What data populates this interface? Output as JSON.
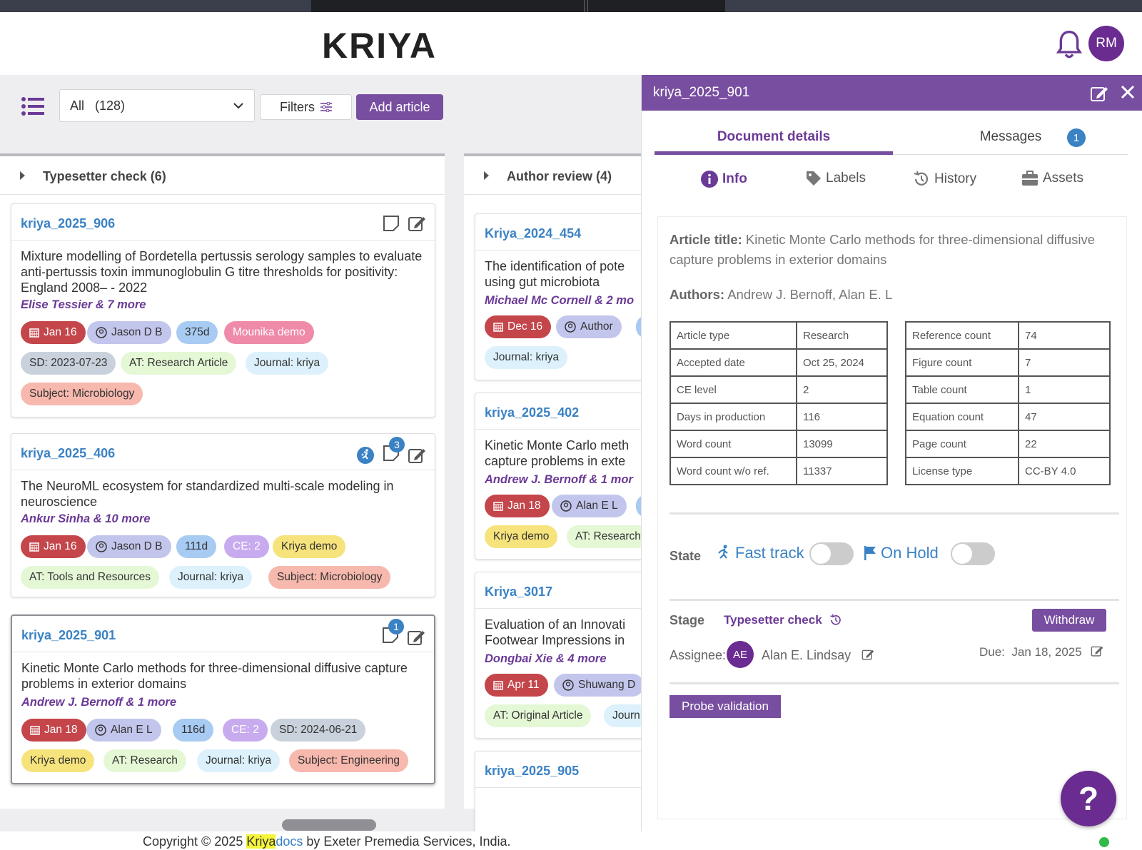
{
  "app": {
    "logo": "KRIYA",
    "user_initials": "RM"
  },
  "toolbar": {
    "view_filter": "All",
    "view_count": "(128)",
    "filters_label": "Filters",
    "add_article_label": "Add article"
  },
  "columns": [
    {
      "title": "Typesetter check (6)",
      "cards": [
        {
          "id": "kriya_2025_906",
          "title": "Mixture modelling of Bordetella pertussis serology samples to evaluate anti-pertussis toxin immunoglobulin G titre thresholds for positivity: England 2008– - 2022",
          "authors": "Elise Tessier & 7 more",
          "chips": [
            "Jan 16",
            "Jason D B",
            "375d",
            "Mounika demo",
            "SD: 2023-07-23",
            "AT: Research Article",
            "Journal: kriya",
            "Subject: Microbiology"
          ]
        },
        {
          "id": "kriya_2025_406",
          "title": "The NeuroML ecosystem for standardized multi-scale modeling in neuroscience",
          "authors": "Ankur Sinha & 10 more",
          "badge": "3",
          "chips": [
            "Jan 16",
            "Jason D B",
            "111d",
            "CE: 2",
            "Kriya demo",
            "AT: Tools and Resources",
            "Journal: kriya",
            "Subject: Microbiology"
          ]
        },
        {
          "id": "kriya_2025_901",
          "title": "Kinetic Monte Carlo methods for three-dimensional diffusive capture problems in exterior domains",
          "authors": "Andrew J. Bernoff & 1 more",
          "badge": "1",
          "chips": [
            "Jan 18",
            "Alan E L",
            "116d",
            "CE: 2",
            "SD: 2024-06-21",
            "Kriya demo",
            "AT: Research",
            "Journal: kriya",
            "Subject: Engineering"
          ]
        }
      ]
    },
    {
      "title": "Author review (4)",
      "cards": [
        {
          "id": "Kriya_2024_454",
          "title_l1": "The identification of pote",
          "title_l2": "using gut microbiota",
          "authors": "Michael Mc Cornell & 2 mo",
          "chips": [
            "Dec 16",
            "Author",
            "Journal: kriya"
          ]
        },
        {
          "id": "kriya_2025_402",
          "title_l1": "Kinetic Monte Carlo meth",
          "title_l2": "capture problems in exte",
          "authors": "Andrew J. Bernoff & 1 mor",
          "chips": [
            "Jan 18",
            "Alan E L",
            "Kriya demo",
            "AT: Research"
          ]
        },
        {
          "id": "Kriya_3017",
          "title_l1": "Evaluation of an Innovati",
          "title_l2": "Footwear Impressions in",
          "authors": "Dongbai Xie & 4 more",
          "chips": [
            "Apr 11",
            "Shuwang D",
            "AT: Original Article",
            "Journ"
          ]
        },
        {
          "id": "kriya_2025_905"
        }
      ]
    }
  ],
  "panel": {
    "doc_id": "kriya_2025_901",
    "tab_details": "Document details",
    "tab_messages": "Messages",
    "messages_count": "1",
    "subtabs": [
      "Info",
      "Labels",
      "History",
      "Assets"
    ],
    "article_title_label": "Article title:",
    "article_title": "Kinetic Monte Carlo methods for three-dimensional diffusive capture problems in exterior domains",
    "authors_label": "Authors:",
    "authors": "Andrew J. Bernoff, Alan E. L",
    "meta_left": [
      [
        "Article type",
        "Research"
      ],
      [
        "Accepted date",
        "Oct 25, 2024"
      ],
      [
        "CE level",
        "2"
      ],
      [
        "Days in production",
        "116"
      ],
      [
        "Word count",
        "13099"
      ],
      [
        "Word count w/o ref.",
        "11337"
      ]
    ],
    "meta_right": [
      [
        "Reference count",
        "74"
      ],
      [
        "Figure count",
        "7"
      ],
      [
        "Table count",
        "1"
      ],
      [
        "Equation count",
        "47"
      ],
      [
        "Page count",
        "22"
      ],
      [
        "License type",
        "CC-BY 4.0"
      ]
    ],
    "state_label": "State",
    "fast_track_label": "Fast track",
    "on_hold_label": "On Hold",
    "stage_label": "Stage",
    "stage_value": "Typesetter check",
    "withdraw_label": "Withdraw",
    "assignee_label": "Assignee:",
    "assignee_initials": "AE",
    "assignee_name": "Alan E. Lindsay",
    "due_label": "Due:",
    "due_date": "Jan 18, 2025",
    "probe_label": "Probe validation"
  },
  "footer": {
    "prefix": "Copyright © 2025 ",
    "brand_a": "Kriya",
    "brand_b": "docs",
    "suffix": " by Exeter Premedia Services, India."
  },
  "help_label": "?",
  "colors": {
    "accent": "#784ea0",
    "link": "#3a82c4",
    "date_chip": "#c4464b"
  }
}
